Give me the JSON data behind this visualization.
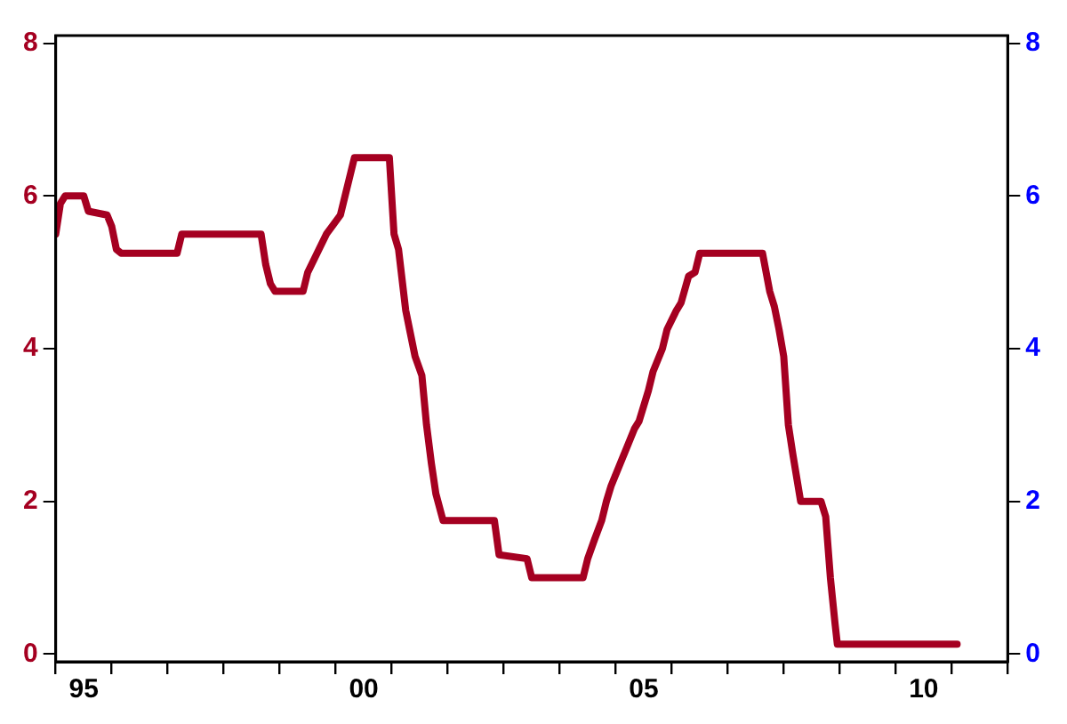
{
  "chart_data": {
    "type": "line",
    "x": [
      "1995-01",
      "1995-02",
      "1995-03",
      "1995-07",
      "1995-08",
      "1995-12",
      "1996-01",
      "1996-02",
      "1996-03",
      "1997-03",
      "1997-04",
      "1998-09",
      "1998-10",
      "1998-11",
      "1998-12",
      "1999-06",
      "1999-07",
      "1999-09",
      "1999-11",
      "2000-02",
      "2000-03",
      "2000-05",
      "2000-12-16",
      "2001-01-16",
      "2001-02-15",
      "2001-04",
      "2001-05",
      "2001-06",
      "2001-07-15",
      "2001-08-15",
      "2001-09-16",
      "2001-10-15",
      "2001-12",
      "2002-11",
      "2002-12",
      "2003-06",
      "2003-07",
      "2004-06",
      "2004-07",
      "2004-08-15",
      "2004-10",
      "2004-11",
      "2004-12",
      "2005-02",
      "2005-03",
      "2005-05",
      "2005-06",
      "2005-08",
      "2005-09",
      "2005-11",
      "2005-12",
      "2006-02",
      "2006-03",
      "2006-04-20",
      "2006-06",
      "2006-07",
      "2007-08-15",
      "2007-10",
      "2007-11",
      "2007-12",
      "2008-01",
      "2008-02",
      "2008-03",
      "2008-04-20",
      "2008-09",
      "2008-10",
      "2008-11",
      "2008-12",
      "2008-12-16",
      "2011-02-06"
    ],
    "series": [
      {
        "color": "#a50021",
        "values": [
          5.5,
          5.9,
          6.0,
          6.0,
          5.8,
          5.75,
          5.6,
          5.3,
          5.25,
          5.25,
          5.5,
          5.5,
          5.1,
          4.85,
          4.75,
          4.75,
          5.0,
          5.25,
          5.5,
          5.75,
          6.0,
          6.5,
          6.5,
          5.5,
          5.3,
          4.5,
          4.2,
          3.9,
          3.65,
          3.0,
          2.5,
          2.1,
          1.75,
          1.75,
          1.3,
          1.25,
          1.0,
          1.0,
          1.25,
          1.5,
          1.75,
          2.0,
          2.2,
          2.5,
          2.65,
          2.95,
          3.05,
          3.45,
          3.7,
          4.0,
          4.25,
          4.5,
          4.6,
          4.95,
          5.0,
          5.25,
          5.25,
          4.75,
          4.55,
          4.25,
          3.9,
          3.0,
          2.6,
          2.0,
          2.0,
          1.8,
          1.0,
          0.4,
          0.13,
          0.13
        ]
      }
    ],
    "xlim": [
      "1995",
      "2012"
    ],
    "xticks": [
      {
        "value": "1995",
        "label": null
      },
      {
        "value": "1995-07",
        "label": "95"
      },
      {
        "value": "1996",
        "label": null
      },
      {
        "value": "1997",
        "label": null
      },
      {
        "value": "1998",
        "label": null
      },
      {
        "value": "1999",
        "label": null
      },
      {
        "value": "2000",
        "label": null
      },
      {
        "value": "2000-07",
        "label": "00"
      },
      {
        "value": "2001",
        "label": null
      },
      {
        "value": "2002",
        "label": null
      },
      {
        "value": "2003",
        "label": null
      },
      {
        "value": "2004",
        "label": null
      },
      {
        "value": "2005",
        "label": null
      },
      {
        "value": "2005-07",
        "label": "05"
      },
      {
        "value": "2006",
        "label": null
      },
      {
        "value": "2007",
        "label": null
      },
      {
        "value": "2008",
        "label": null
      },
      {
        "value": "2009",
        "label": null
      },
      {
        "value": "2010",
        "label": null
      },
      {
        "value": "2010-07",
        "label": "10"
      },
      {
        "value": "2011",
        "label": null
      },
      {
        "value": "2012",
        "label": null
      }
    ],
    "ylim": [
      -0.1,
      8.1
    ],
    "yticks": [
      0,
      2,
      4,
      6,
      8
    ],
    "y2lim": [
      -0.1,
      8.1
    ],
    "y2ticks": [
      0,
      2,
      4,
      6,
      8
    ],
    "legend": false,
    "grid": false,
    "marker": "none",
    "line_style": "solid"
  }
}
